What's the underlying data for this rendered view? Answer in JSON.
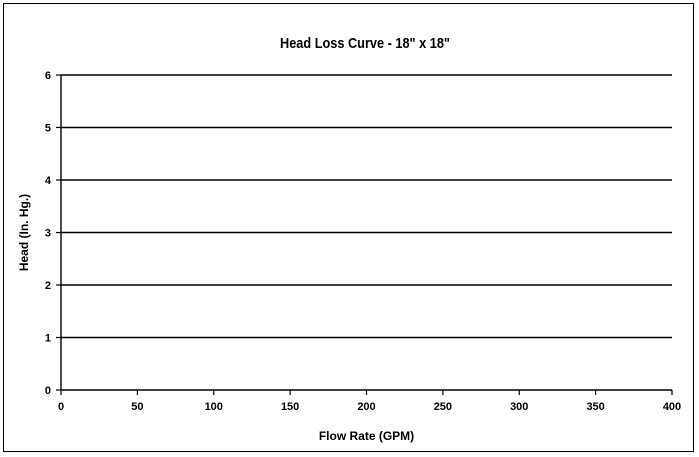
{
  "chart_data": {
    "type": "line",
    "title": "Head Loss Curve - 18\" x 18\"",
    "xlabel": "Flow Rate (GPM)",
    "ylabel": "Head (In. Hg.)",
    "xlim": [
      0,
      400
    ],
    "ylim": [
      0,
      6
    ],
    "x_ticks": [
      "0",
      "50",
      "100",
      "150",
      "200",
      "250",
      "300",
      "350",
      "400"
    ],
    "y_ticks": [
      "0",
      "1",
      "2",
      "3",
      "4",
      "5",
      "6"
    ],
    "grid": "horizontal",
    "legend": "none",
    "series": []
  }
}
